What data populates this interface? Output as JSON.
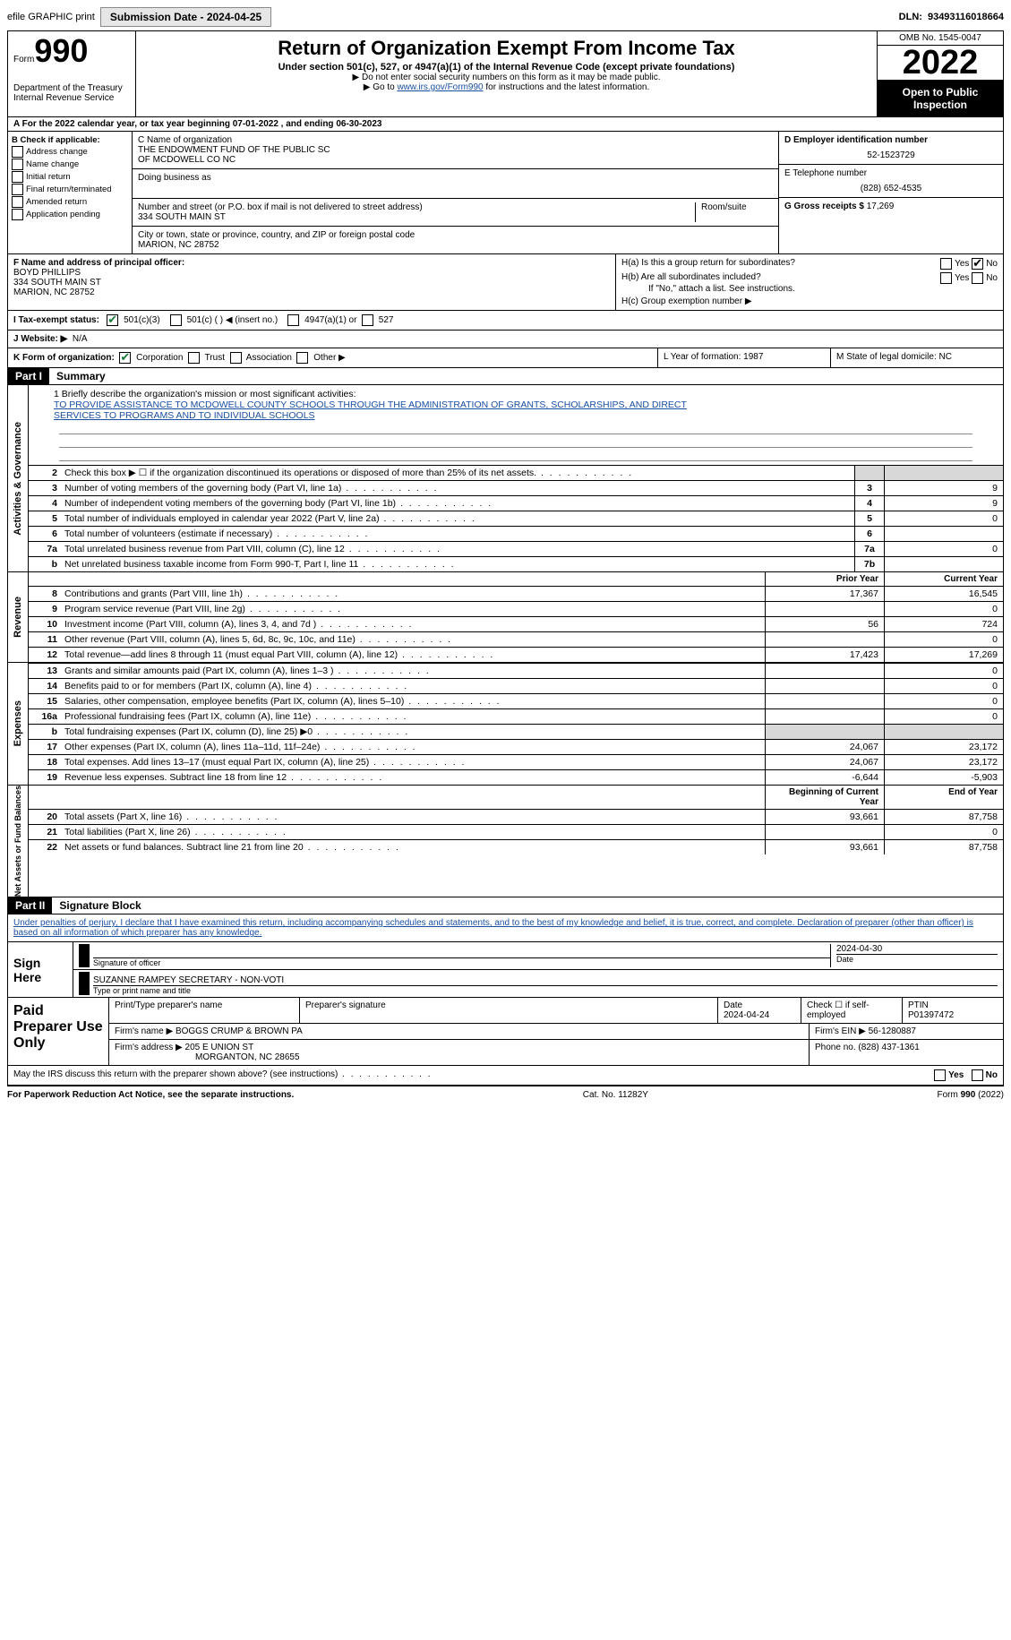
{
  "topbar": {
    "efile": "efile GRAPHIC print",
    "submission": "Submission Date - 2024-04-25",
    "dln_label": "DLN:",
    "dln": "93493116018664"
  },
  "header": {
    "form_word": "Form",
    "form_no": "990",
    "dept": "Department of the Treasury",
    "irs": "Internal Revenue Service",
    "title": "Return of Organization Exempt From Income Tax",
    "sub": "Under section 501(c), 527, or 4947(a)(1) of the Internal Revenue Code (except private foundations)",
    "note1": "▶ Do not enter social security numbers on this form as it may be made public.",
    "note2_pre": "▶ Go to ",
    "note2_link": "www.irs.gov/Form990",
    "note2_post": " for instructions and the latest information.",
    "omb": "OMB No. 1545-0047",
    "year": "2022",
    "open": "Open to Public Inspection"
  },
  "row_a": "A For the 2022 calendar year, or tax year beginning 07-01-2022   , and ending 06-30-2023",
  "col_b": {
    "title": "B Check if applicable:",
    "opts": [
      "Address change",
      "Name change",
      "Initial return",
      "Final return/terminated",
      "Amended return",
      "Application pending"
    ]
  },
  "col_c": {
    "name_label": "C Name of organization",
    "name1": "THE ENDOWMENT FUND OF THE PUBLIC SC",
    "name2": "OF MCDOWELL CO NC",
    "dba": "Doing business as",
    "addr_label": "Number and street (or P.O. box if mail is not delivered to street address)",
    "room": "Room/suite",
    "addr": "334 SOUTH MAIN ST",
    "city_label": "City or town, state or province, country, and ZIP or foreign postal code",
    "city": "MARION, NC  28752"
  },
  "col_d": {
    "ein_label": "D Employer identification number",
    "ein": "52-1523729",
    "phone_label": "E Telephone number",
    "phone": "(828) 652-4535",
    "gross_label": "G Gross receipts $",
    "gross": "17,269"
  },
  "col_f": {
    "label": "F Name and address of principal officer:",
    "name": "BOYD PHILLIPS",
    "addr1": "334 SOUTH MAIN ST",
    "addr2": "MARION, NC  28752"
  },
  "col_h": {
    "ha": "H(a)  Is this a group return for subordinates?",
    "hb": "H(b)  Are all subordinates included?",
    "hb_note": "If \"No,\" attach a list. See instructions.",
    "hc": "H(c)  Group exemption number ▶",
    "yes": "Yes",
    "no": "No"
  },
  "tax_status": {
    "label": "I  Tax-exempt status:",
    "o1": "501(c)(3)",
    "o2": "501(c) (  ) ◀ (insert no.)",
    "o3": "4947(a)(1) or",
    "o4": "527"
  },
  "row_j": {
    "label": "J  Website: ▶",
    "val": "N/A"
  },
  "row_k": {
    "label": "K Form of organization:",
    "o1": "Corporation",
    "o2": "Trust",
    "o3": "Association",
    "o4": "Other ▶",
    "l": "L Year of formation: 1987",
    "m": "M State of legal domicile: NC"
  },
  "part1": {
    "hdr": "Part I",
    "title": "Summary"
  },
  "mission": {
    "label": "1  Briefly describe the organization's mission or most significant activities:",
    "line1": "TO PROVIDE ASSISTANCE TO MCDOWELL COUNTY SCHOOLS THROUGH THE ADMINISTRATION OF GRANTS, SCHOLARSHIPS, AND DIRECT",
    "line2": "SERVICES TO PROGRAMS AND TO INDIVIDUAL SCHOOLS"
  },
  "gov_lines": [
    {
      "n": "2",
      "d": "Check this box ▶ ☐ if the organization discontinued its operations or disposed of more than 25% of its net assets."
    },
    {
      "n": "3",
      "d": "Number of voting members of the governing body (Part VI, line 1a)",
      "box": "3",
      "v": "9"
    },
    {
      "n": "4",
      "d": "Number of independent voting members of the governing body (Part VI, line 1b)",
      "box": "4",
      "v": "9"
    },
    {
      "n": "5",
      "d": "Total number of individuals employed in calendar year 2022 (Part V, line 2a)",
      "box": "5",
      "v": "0"
    },
    {
      "n": "6",
      "d": "Total number of volunteers (estimate if necessary)",
      "box": "6",
      "v": ""
    },
    {
      "n": "7a",
      "d": "Total unrelated business revenue from Part VIII, column (C), line 12",
      "box": "7a",
      "v": "0"
    },
    {
      "n": "b",
      "d": "Net unrelated business taxable income from Form 990-T, Part I, line 11",
      "box": "7b",
      "v": ""
    }
  ],
  "rev_hdr": {
    "prior": "Prior Year",
    "curr": "Current Year"
  },
  "rev_lines": [
    {
      "n": "8",
      "d": "Contributions and grants (Part VIII, line 1h)",
      "p": "17,367",
      "c": "16,545"
    },
    {
      "n": "9",
      "d": "Program service revenue (Part VIII, line 2g)",
      "p": "",
      "c": "0"
    },
    {
      "n": "10",
      "d": "Investment income (Part VIII, column (A), lines 3, 4, and 7d )",
      "p": "56",
      "c": "724"
    },
    {
      "n": "11",
      "d": "Other revenue (Part VIII, column (A), lines 5, 6d, 8c, 9c, 10c, and 11e)",
      "p": "",
      "c": "0"
    },
    {
      "n": "12",
      "d": "Total revenue—add lines 8 through 11 (must equal Part VIII, column (A), line 12)",
      "p": "17,423",
      "c": "17,269"
    }
  ],
  "exp_lines": [
    {
      "n": "13",
      "d": "Grants and similar amounts paid (Part IX, column (A), lines 1–3 )",
      "p": "",
      "c": "0"
    },
    {
      "n": "14",
      "d": "Benefits paid to or for members (Part IX, column (A), line 4)",
      "p": "",
      "c": "0"
    },
    {
      "n": "15",
      "d": "Salaries, other compensation, employee benefits (Part IX, column (A), lines 5–10)",
      "p": "",
      "c": "0"
    },
    {
      "n": "16a",
      "d": "Professional fundraising fees (Part IX, column (A), line 11e)",
      "p": "",
      "c": "0"
    },
    {
      "n": "b",
      "d": "Total fundraising expenses (Part IX, column (D), line 25) ▶0",
      "p": "shade",
      "c": "shade"
    },
    {
      "n": "17",
      "d": "Other expenses (Part IX, column (A), lines 11a–11d, 11f–24e)",
      "p": "24,067",
      "c": "23,172"
    },
    {
      "n": "18",
      "d": "Total expenses. Add lines 13–17 (must equal Part IX, column (A), line 25)",
      "p": "24,067",
      "c": "23,172"
    },
    {
      "n": "19",
      "d": "Revenue less expenses. Subtract line 18 from line 12",
      "p": "-6,644",
      "c": "-5,903"
    }
  ],
  "net_hdr": {
    "beg": "Beginning of Current Year",
    "end": "End of Year"
  },
  "net_lines": [
    {
      "n": "20",
      "d": "Total assets (Part X, line 16)",
      "p": "93,661",
      "c": "87,758"
    },
    {
      "n": "21",
      "d": "Total liabilities (Part X, line 26)",
      "p": "",
      "c": "0"
    },
    {
      "n": "22",
      "d": "Net assets or fund balances. Subtract line 21 from line 20",
      "p": "93,661",
      "c": "87,758"
    }
  ],
  "side_tabs": {
    "gov": "Activities & Governance",
    "rev": "Revenue",
    "exp": "Expenses",
    "net": "Net Assets or Fund Balances"
  },
  "part2": {
    "hdr": "Part II",
    "title": "Signature Block"
  },
  "penalties": "Under penalties of perjury, I declare that I have examined this return, including accompanying schedules and statements, and to the best of my knowledge and belief, it is true, correct, and complete. Declaration of preparer (other than officer) is based on all information of which preparer has any knowledge.",
  "sign": {
    "here": "Sign Here",
    "sig_officer": "Signature of officer",
    "date": "Date",
    "date_val": "2024-04-30",
    "name": "SUZANNE RAMPEY  SECRETARY - NON-VOTI",
    "name_label": "Type or print name and title"
  },
  "paid": {
    "title": "Paid Preparer Use Only",
    "h1": "Print/Type preparer's name",
    "h2": "Preparer's signature",
    "h3": "Date",
    "h3v": "2024-04-24",
    "h4": "Check ☐ if self-employed",
    "h5": "PTIN",
    "h5v": "P01397472",
    "firm_label": "Firm's name    ▶",
    "firm": "BOGGS CRUMP & BROWN PA",
    "ein_label": "Firm's EIN ▶",
    "ein": "56-1280887",
    "addr_label": "Firm's address ▶",
    "addr1": "205 E UNION ST",
    "addr2": "MORGANTON, NC  28655",
    "phone_label": "Phone no.",
    "phone": "(828) 437-1361"
  },
  "discuss": "May the IRS discuss this return with the preparer shown above? (see instructions)",
  "footer": {
    "pra": "For Paperwork Reduction Act Notice, see the separate instructions.",
    "cat": "Cat. No. 11282Y",
    "form": "Form 990 (2022)"
  }
}
